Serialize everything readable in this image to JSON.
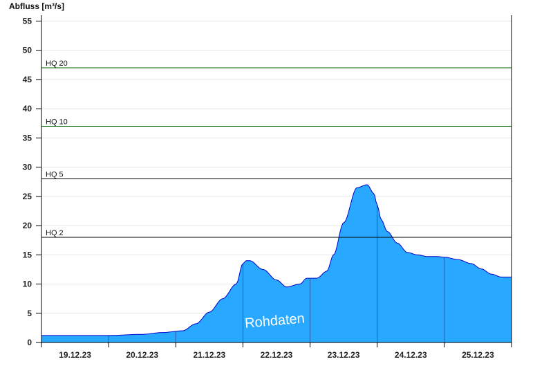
{
  "chart_data": {
    "type": "area",
    "title": "",
    "ylabel": "Abfluss [m³/s]",
    "xlabel": "",
    "ylim": [
      0,
      56
    ],
    "yticks": [
      0,
      5,
      10,
      15,
      20,
      25,
      30,
      35,
      40,
      45,
      50,
      55
    ],
    "xlim": [
      0,
      7
    ],
    "x_unit": "days from 19.12.23 00:00",
    "xticks": [
      {
        "x": 0.5,
        "label": "19.12.23"
      },
      {
        "x": 1.5,
        "label": "20.12.23"
      },
      {
        "x": 2.5,
        "label": "21.12.23"
      },
      {
        "x": 3.5,
        "label": "22.12.23"
      },
      {
        "x": 4.5,
        "label": "23.12.23"
      },
      {
        "x": 5.5,
        "label": "24.12.23"
      },
      {
        "x": 6.5,
        "label": "25.12.23"
      }
    ],
    "day_separators": [
      1,
      2,
      3,
      4,
      5,
      6
    ],
    "grid": true,
    "thresholds": [
      {
        "label": "HQ 2",
        "value": 18,
        "color": "#000000"
      },
      {
        "label": "HQ 5",
        "value": 28,
        "color": "#000000"
      },
      {
        "label": "HQ 10",
        "value": 37,
        "color": "#006400"
      },
      {
        "label": "HQ 20",
        "value": 47,
        "color": "#006400"
      }
    ],
    "watermark": "Rohdaten",
    "colors": {
      "fill": "#29a8ff",
      "stroke": "#0000cc",
      "grid": "#e6e6e6",
      "axis": "#000000"
    },
    "x": [
      0,
      0.5,
      1.0,
      1.5,
      1.8,
      2.1,
      2.3,
      2.5,
      2.7,
      2.9,
      3.0,
      3.05,
      3.1,
      3.3,
      3.5,
      3.65,
      3.85,
      3.95,
      4.1,
      4.25,
      4.35,
      4.5,
      4.7,
      4.85,
      4.95,
      5.0,
      5.06,
      5.15,
      5.3,
      5.45,
      5.6,
      5.75,
      5.9,
      6.0,
      6.2,
      6.4,
      6.55,
      6.7,
      6.85,
      7.0
    ],
    "values": [
      1.2,
      1.2,
      1.2,
      1.4,
      1.7,
      2.0,
      3.2,
      5.2,
      7.5,
      10.0,
      13.5,
      14.0,
      14.0,
      12.5,
      10.7,
      9.5,
      10.0,
      11.0,
      11.0,
      12.2,
      15.0,
      20.5,
      26.5,
      27.0,
      25.5,
      23.5,
      21.0,
      19.0,
      17.0,
      15.4,
      15.0,
      14.7,
      14.7,
      14.6,
      14.2,
      13.5,
      12.6,
      11.7,
      11.2,
      11.2
    ]
  }
}
